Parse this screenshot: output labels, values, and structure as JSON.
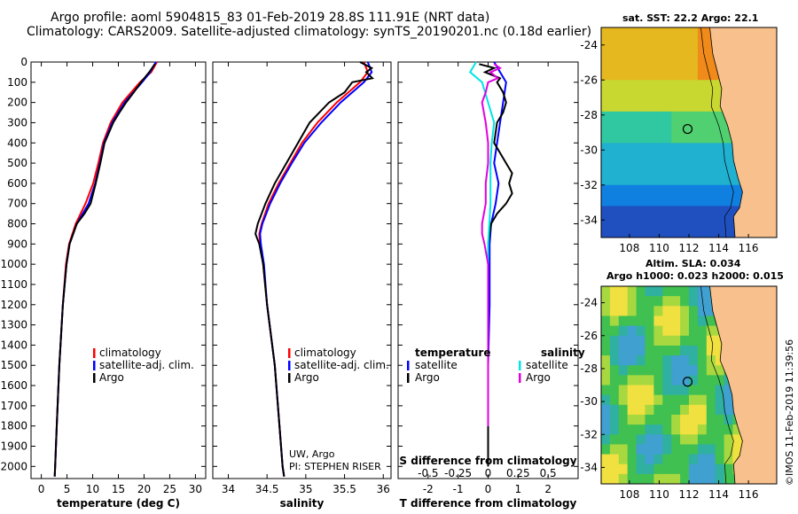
{
  "header": {
    "line1": "Argo profile: aoml 5904815_83 01-Feb-2019 28.8S 111.91E (NRT data)",
    "line2": "Climatology: CARS2009. Satellite-adjusted climatology: synTS_20190201.nc (0.18d earlier)"
  },
  "colors": {
    "climatology": "#ff0000",
    "satellite": "#0000ff",
    "argo": "#000000",
    "satellite_salinity": "#00e5e5",
    "argo_salinity": "#e000e0",
    "land": "#f7c08c"
  },
  "credit": "©IMOS 11-Feb-2019 11:39:56",
  "chart_data": [
    {
      "type": "line",
      "xlabel": "temperature (deg C)",
      "ylabel": "",
      "xlim": [
        -2,
        32
      ],
      "ylim": [
        2060,
        0
      ],
      "x_ticks": [
        "0",
        "5",
        "10",
        "15",
        "20",
        "25",
        "30"
      ],
      "y_ticks": [
        "0",
        "100",
        "200",
        "300",
        "400",
        "500",
        "600",
        "700",
        "800",
        "900",
        "1000",
        "1100",
        "1200",
        "1300",
        "1400",
        "1500",
        "1600",
        "1700",
        "1800",
        "1900",
        "2000"
      ],
      "legend": [
        "climatology",
        "satellite-adj. clim.",
        "Argo"
      ],
      "series": [
        {
          "name": "climatology",
          "depth": [
            0,
            50,
            100,
            200,
            300,
            400,
            500,
            600,
            700,
            800,
            900,
            1000,
            1200,
            1500,
            1800,
            2000,
            2050
          ],
          "values": [
            22.5,
            21.4,
            19.2,
            15.8,
            13.5,
            12.0,
            11.1,
            10.1,
            8.6,
            6.7,
            5.4,
            4.8,
            4.2,
            3.5,
            3.0,
            2.7,
            2.6
          ]
        },
        {
          "name": "satellite-adj. clim.",
          "depth": [
            0,
            50,
            100,
            200,
            300,
            400,
            500,
            600,
            700,
            800,
            900,
            1000,
            1200,
            1500,
            1800,
            2000,
            2050
          ],
          "values": [
            22.3,
            21.2,
            19.6,
            16.2,
            13.8,
            12.2,
            11.4,
            10.5,
            9.2,
            6.9,
            5.5,
            4.9,
            4.2,
            3.5,
            3.0,
            2.7,
            2.6
          ]
        },
        {
          "name": "Argo",
          "depth": [
            10,
            50,
            100,
            150,
            200,
            250,
            300,
            400,
            500,
            600,
            700,
            750,
            800,
            900,
            1000,
            1200,
            1500,
            1800,
            2000,
            2050
          ],
          "values": [
            22.1,
            21.0,
            19.4,
            18.0,
            16.5,
            15.2,
            14.0,
            12.3,
            11.5,
            10.6,
            9.6,
            8.4,
            6.9,
            5.5,
            4.9,
            4.2,
            3.5,
            3.0,
            2.7,
            2.6
          ]
        }
      ]
    },
    {
      "type": "line",
      "xlabel": "salinity",
      "xlim": [
        33.8,
        36.1
      ],
      "ylim": [
        2060,
        0
      ],
      "x_ticks": [
        "34",
        "34.5",
        "35",
        "35.5",
        "36"
      ],
      "legend": [
        "climatology",
        "satellite-adj. clim.",
        "Argo"
      ],
      "annotation": [
        "UW, Argo",
        "PI: STEPHEN RISER"
      ],
      "series": [
        {
          "name": "climatology",
          "depth": [
            0,
            50,
            100,
            200,
            300,
            400,
            500,
            600,
            700,
            800,
            850,
            900,
            1000,
            1200,
            1500,
            1800,
            2000,
            2050
          ],
          "values": [
            35.75,
            35.8,
            35.7,
            35.4,
            35.15,
            34.95,
            34.8,
            34.65,
            34.52,
            34.43,
            34.4,
            34.41,
            34.45,
            34.5,
            34.6,
            34.66,
            34.7,
            34.72
          ]
        },
        {
          "name": "satellite-adj. clim.",
          "depth": [
            0,
            50,
            100,
            200,
            300,
            400,
            500,
            600,
            700,
            800,
            850,
            900,
            1000,
            1200,
            1500,
            1800,
            2000,
            2050
          ],
          "values": [
            35.8,
            35.85,
            35.75,
            35.45,
            35.2,
            34.98,
            34.82,
            34.67,
            34.54,
            34.44,
            34.41,
            34.42,
            34.46,
            34.5,
            34.6,
            34.66,
            34.7,
            34.72
          ]
        },
        {
          "name": "Argo",
          "depth": [
            0,
            30,
            50,
            80,
            100,
            150,
            200,
            300,
            400,
            500,
            600,
            700,
            800,
            850,
            900,
            1000,
            1200,
            1500,
            1800,
            2000,
            2050
          ],
          "values": [
            35.7,
            35.85,
            35.78,
            35.86,
            35.6,
            35.5,
            35.3,
            35.05,
            34.9,
            34.75,
            34.6,
            34.48,
            34.38,
            34.35,
            34.4,
            34.45,
            34.5,
            34.6,
            34.66,
            34.7,
            34.72
          ]
        }
      ]
    },
    {
      "type": "line",
      "xlabel": "T difference from climatology",
      "xlim": [
        -3,
        3
      ],
      "ylim": [
        2060,
        0
      ],
      "x_ticks": [
        "-2",
        "-1",
        "0",
        "1",
        "2"
      ],
      "top_label": "S difference from climatology",
      "top_ticks": [
        "-0.5",
        "-0.25",
        "0",
        "0.25",
        "0.5"
      ],
      "legend_temperature_title": "temperature",
      "legend_salinity_title": "salinity",
      "legend_temperature": [
        "satellite",
        "Argo"
      ],
      "legend_salinity": [
        "satellite",
        "Argo"
      ],
      "series": [
        {
          "name": "temperature satellite",
          "depth": [
            0,
            50,
            100,
            200,
            300,
            400,
            500,
            600,
            700,
            800,
            900,
            1000,
            1200,
            1500,
            1800,
            2000
          ],
          "values": [
            0.2,
            0.4,
            0.6,
            0.5,
            0.4,
            0.3,
            0.2,
            0.35,
            0.25,
            0.1,
            0.05,
            0.05,
            0.05,
            0.0,
            0.0,
            0.0
          ]
        },
        {
          "name": "temperature Argo",
          "depth": [
            10,
            30,
            50,
            80,
            100,
            150,
            200,
            250,
            300,
            400,
            500,
            550,
            600,
            650,
            700,
            750,
            800,
            900,
            1000,
            1200,
            1500,
            1800,
            2000
          ],
          "values": [
            -0.3,
            0.2,
            -0.1,
            0.4,
            0.3,
            0.5,
            0.6,
            0.5,
            0.3,
            0.2,
            0.6,
            0.8,
            0.7,
            0.8,
            0.6,
            0.3,
            0.1,
            0.0,
            0.0,
            0.0,
            0.0,
            0.0,
            0.0
          ]
        },
        {
          "name": "salinity satellite",
          "depth": [
            0,
            50,
            100,
            200,
            300,
            400,
            500,
            600,
            700,
            800,
            900,
            1000,
            1200,
            1500,
            1800
          ],
          "values": [
            -0.1,
            -0.15,
            -0.05,
            0.0,
            0.05,
            0.03,
            0.02,
            0.02,
            0.02,
            0.01,
            0.0,
            0.0,
            0.0,
            0.0,
            0.0
          ]
        },
        {
          "name": "salinity Argo",
          "depth": [
            10,
            30,
            50,
            80,
            100,
            150,
            200,
            300,
            400,
            500,
            600,
            700,
            800,
            850,
            900,
            1000,
            1200,
            1500,
            1800
          ],
          "values": [
            0.05,
            0.1,
            0.02,
            0.08,
            0.0,
            -0.02,
            -0.05,
            -0.02,
            0.0,
            0.0,
            -0.02,
            -0.02,
            -0.05,
            -0.05,
            -0.03,
            0.0,
            0.0,
            0.0,
            0.0
          ]
        }
      ]
    },
    {
      "type": "heatmap",
      "title": "sat. SST: 22.2 Argo: 22.1",
      "x_ticks": [
        "108",
        "110",
        "112",
        "114",
        "116"
      ],
      "y_ticks": [
        "-24",
        "-26",
        "-28",
        "-30",
        "-32",
        "-34"
      ],
      "marker": {
        "lon": 111.91,
        "lat": -28.8
      }
    },
    {
      "type": "heatmap",
      "title": "Altim. SLA: 0.034",
      "subtitle": "Argo h1000: 0.023 h2000: 0.015",
      "x_ticks": [
        "108",
        "110",
        "112",
        "114",
        "116"
      ],
      "y_ticks": [
        "-24",
        "-26",
        "-28",
        "-30",
        "-32",
        "-34"
      ],
      "marker": {
        "lon": 111.91,
        "lat": -28.8
      }
    }
  ]
}
